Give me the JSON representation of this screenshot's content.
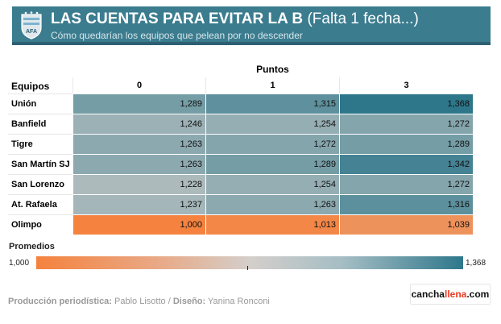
{
  "header": {
    "title": "LAS CUENTAS PARA EVITAR LA B",
    "title_paren": "(Falta 1 fecha...)",
    "subtitle": "Cómo quedarían los equipos que pelean por no descender",
    "crest_icon": "afa-crest-icon",
    "bg_color": "#3b7c8f"
  },
  "chart_data": {
    "type": "heatmap",
    "column_group_label": "Puntos",
    "row_header_label": "Equipos",
    "columns": [
      "0",
      "1",
      "3"
    ],
    "rows": [
      {
        "team": "Unión",
        "values": [
          1.289,
          1.315,
          1.368
        ],
        "labels": [
          "1,289",
          "1,315",
          "1,368"
        ]
      },
      {
        "team": "Banfield",
        "values": [
          1.246,
          1.254,
          1.272
        ],
        "labels": [
          "1,246",
          "1,254",
          "1,272"
        ]
      },
      {
        "team": "Tigre",
        "values": [
          1.263,
          1.272,
          1.289
        ],
        "labels": [
          "1,263",
          "1,272",
          "1,289"
        ]
      },
      {
        "team": "San Martín SJ",
        "values": [
          1.263,
          1.289,
          1.342
        ],
        "labels": [
          "1,263",
          "1,289",
          "1,342"
        ]
      },
      {
        "team": "San Lorenzo",
        "values": [
          1.228,
          1.254,
          1.272
        ],
        "labels": [
          "1,228",
          "1,254",
          "1,272"
        ]
      },
      {
        "team": "At. Rafaela",
        "values": [
          1.237,
          1.263,
          1.316
        ],
        "labels": [
          "1,237",
          "1,263",
          "1,316"
        ]
      },
      {
        "team": "Olimpo",
        "values": [
          1.0,
          1.013,
          1.039
        ],
        "labels": [
          "1,000",
          "1,013",
          "1,039"
        ]
      }
    ],
    "legend": {
      "title": "Promedios",
      "min_label": "1,000",
      "max_label": "1,368",
      "min": 1.0,
      "max": 1.368
    },
    "colors": {
      "low": "#f5823e",
      "mid": "#d4cfcb",
      "high": "#2e778b"
    }
  },
  "footer": {
    "credit_label_1": "Producción periodística:",
    "credit_name_1": "Pablo Lisotto",
    "credit_sep": "/",
    "credit_label_2": "Diseño:",
    "credit_name_2": "Yanina Ronconi",
    "logo_part1": "cancha",
    "logo_part2": "llena",
    "logo_part3": ".com"
  }
}
